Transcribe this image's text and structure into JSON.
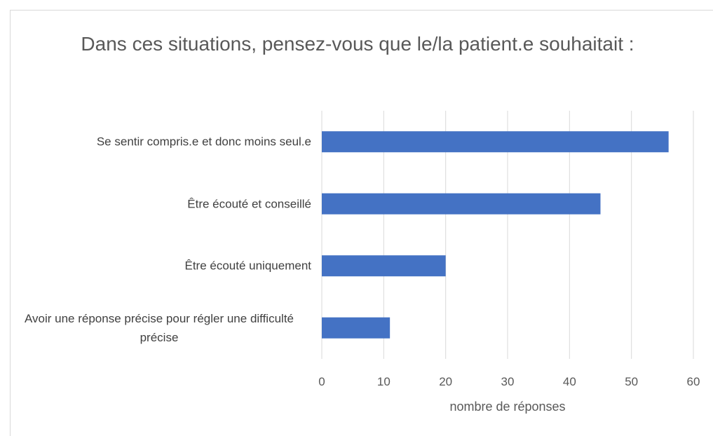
{
  "chart_data": {
    "type": "hbar",
    "title": "Dans ces situations, pensez-vous que le/la patient.e souhaitait :",
    "categories": [
      "Se sentir compris.e et donc moins seul.e",
      "Être écouté et conseillé",
      "Être écouté uniquement",
      "Avoir une réponse précise pour régler une difficulté précise"
    ],
    "values": [
      56,
      45,
      20,
      11
    ],
    "color": "#4472c4",
    "xlabel": "nombre de réponses",
    "xlim": [
      0,
      60
    ],
    "xticks": [
      0,
      10,
      20,
      30,
      40,
      50,
      60
    ],
    "grid": true
  }
}
